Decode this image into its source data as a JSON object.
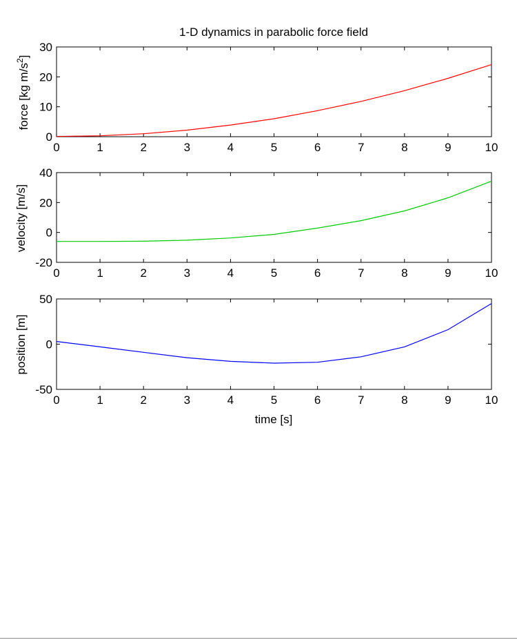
{
  "chart_data": [
    {
      "type": "line",
      "title": "1-D dynamics in parabolic force field",
      "xlabel": "",
      "ylabel": "force [kg m/s^2]",
      "ylabel_parts": {
        "base": "force [kg m/s",
        "sup": "2",
        "tail": "]"
      },
      "xlim": [
        0,
        10
      ],
      "ylim": [
        0,
        30
      ],
      "xticks": [
        0,
        1,
        2,
        3,
        4,
        5,
        6,
        7,
        8,
        9,
        10
      ],
      "yticks": [
        0,
        10,
        20,
        30
      ],
      "grid": false,
      "series": [
        {
          "color": "#ff0000",
          "x": [
            0,
            1,
            2,
            3,
            4,
            5,
            6,
            7,
            8,
            9,
            10
          ],
          "y": [
            0.1,
            0.3,
            1.0,
            2.2,
            3.9,
            6.0,
            8.7,
            11.8,
            15.4,
            19.5,
            24.1
          ]
        }
      ]
    },
    {
      "type": "line",
      "title": "",
      "xlabel": "",
      "ylabel": "velocity [m/s]",
      "xlim": [
        0,
        10
      ],
      "ylim": [
        -20,
        40
      ],
      "xticks": [
        0,
        1,
        2,
        3,
        4,
        5,
        6,
        7,
        8,
        9,
        10
      ],
      "yticks": [
        -20,
        0,
        20,
        40
      ],
      "grid": false,
      "series": [
        {
          "color": "#00cc00",
          "x": [
            0,
            1,
            2,
            3,
            4,
            5,
            6,
            7,
            8,
            9,
            10
          ],
          "y": [
            -6.0,
            -6.0,
            -5.9,
            -5.2,
            -3.7,
            -1.3,
            2.9,
            7.9,
            14.4,
            23.1,
            34.3
          ]
        }
      ]
    },
    {
      "type": "line",
      "title": "",
      "xlabel": "time [s]",
      "ylabel": "position [m]",
      "xlim": [
        0,
        10
      ],
      "ylim": [
        -50,
        50
      ],
      "xticks": [
        0,
        1,
        2,
        3,
        4,
        5,
        6,
        7,
        8,
        9,
        10
      ],
      "yticks": [
        -50,
        0,
        50
      ],
      "grid": false,
      "series": [
        {
          "color": "#0000ff",
          "x": [
            0,
            1,
            2,
            3,
            4,
            5,
            6,
            7,
            8,
            9,
            10
          ],
          "y": [
            3,
            -3,
            -9,
            -15,
            -19,
            -21,
            -20,
            -14,
            -3,
            16,
            45
          ]
        }
      ]
    }
  ]
}
